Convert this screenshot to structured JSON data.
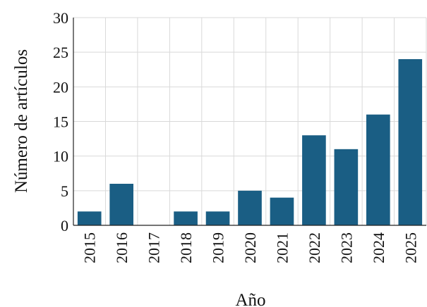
{
  "chart_data": {
    "type": "bar",
    "categories": [
      "2015",
      "2016",
      "2017",
      "2018",
      "2019",
      "2020",
      "2021",
      "2022",
      "2023",
      "2024",
      "2025"
    ],
    "series": [
      {
        "values": [
          2,
          6,
          0,
          2,
          2,
          5,
          4,
          13,
          11,
          16,
          24
        ]
      }
    ],
    "xlabel": "Año",
    "ylabel": "Número de artículos",
    "ylim": [
      0,
      30
    ],
    "yticks": [
      0,
      5,
      10,
      15,
      20,
      25,
      30
    ],
    "grid": true,
    "legend": "none",
    "colors": {
      "bar": "#1a5e84",
      "grid": "#d9d9d9",
      "axis": "#222222"
    }
  }
}
